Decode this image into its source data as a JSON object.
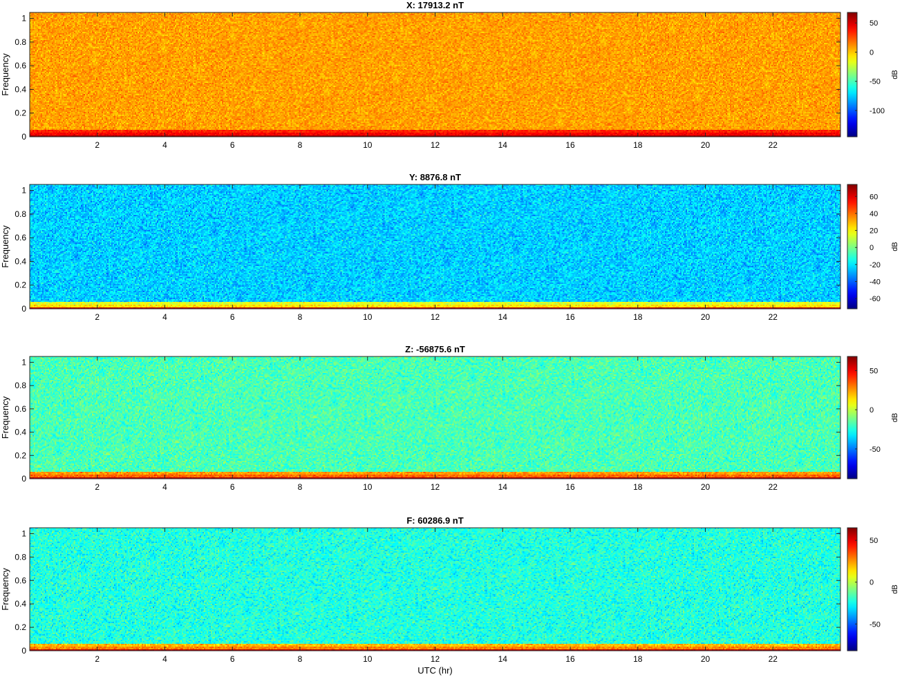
{
  "chart_data": [
    {
      "type": "heatmap",
      "title": "X: 17913.2 nT",
      "ylabel": "Frequency",
      "xlabel": "",
      "xlim": [
        0,
        24
      ],
      "ylim": [
        0,
        1.05
      ],
      "xticks": [
        2,
        4,
        6,
        8,
        10,
        12,
        14,
        16,
        18,
        20,
        22
      ],
      "yticks": [
        0,
        0.2,
        0.4,
        0.6,
        0.8,
        1
      ],
      "colorbar": {
        "label": "dB",
        "range": [
          -145,
          68
        ],
        "ticks": [
          50,
          0,
          -50,
          -100
        ]
      },
      "background_level_db": 8,
      "low_freq_band_db": 35,
      "dc_line_db": 62,
      "colormap": "jet"
    },
    {
      "type": "heatmap",
      "title": "Y: 8876.8 nT",
      "ylabel": "Frequency",
      "xlabel": "",
      "xlim": [
        0,
        24
      ],
      "ylim": [
        0,
        1.05
      ],
      "xticks": [
        2,
        4,
        6,
        8,
        10,
        12,
        14,
        16,
        18,
        20,
        22
      ],
      "yticks": [
        0,
        0.2,
        0.4,
        0.6,
        0.8,
        1
      ],
      "colorbar": {
        "label": "dB",
        "range": [
          -72,
          74
        ],
        "ticks": [
          60,
          40,
          20,
          0,
          -20,
          -40,
          -60
        ]
      },
      "background_level_db": -24,
      "low_freq_band_db": 15,
      "dc_line_db": 65,
      "colormap": "jet"
    },
    {
      "type": "heatmap",
      "title": "Z: -56875.6 nT",
      "ylabel": "Frequency",
      "xlabel": "",
      "xlim": [
        0,
        24
      ],
      "ylim": [
        0,
        1.05
      ],
      "xticks": [
        2,
        4,
        6,
        8,
        10,
        12,
        14,
        16,
        18,
        20,
        22
      ],
      "yticks": [
        0,
        0.2,
        0.4,
        0.6,
        0.8,
        1
      ],
      "colorbar": {
        "label": "dB",
        "range": [
          -88,
          68
        ],
        "ticks": [
          50,
          0,
          -50
        ]
      },
      "background_level_db": -18,
      "low_freq_band_db": 25,
      "dc_line_db": 60,
      "colormap": "jet"
    },
    {
      "type": "heatmap",
      "title": "F: 60286.9 nT",
      "ylabel": "Frequency",
      "xlabel": "UTC (hr)",
      "xlim": [
        0,
        24
      ],
      "ylim": [
        0,
        1.05
      ],
      "xticks": [
        2,
        4,
        6,
        8,
        10,
        12,
        14,
        16,
        18,
        20,
        22
      ],
      "yticks": [
        0,
        0.2,
        0.4,
        0.6,
        0.8,
        1
      ],
      "colorbar": {
        "label": "dB",
        "range": [
          -82,
          65
        ],
        "ticks": [
          50,
          0,
          -50
        ]
      },
      "background_level_db": -22,
      "low_freq_band_db": 20,
      "dc_line_db": 58,
      "colormap": "jet"
    }
  ]
}
